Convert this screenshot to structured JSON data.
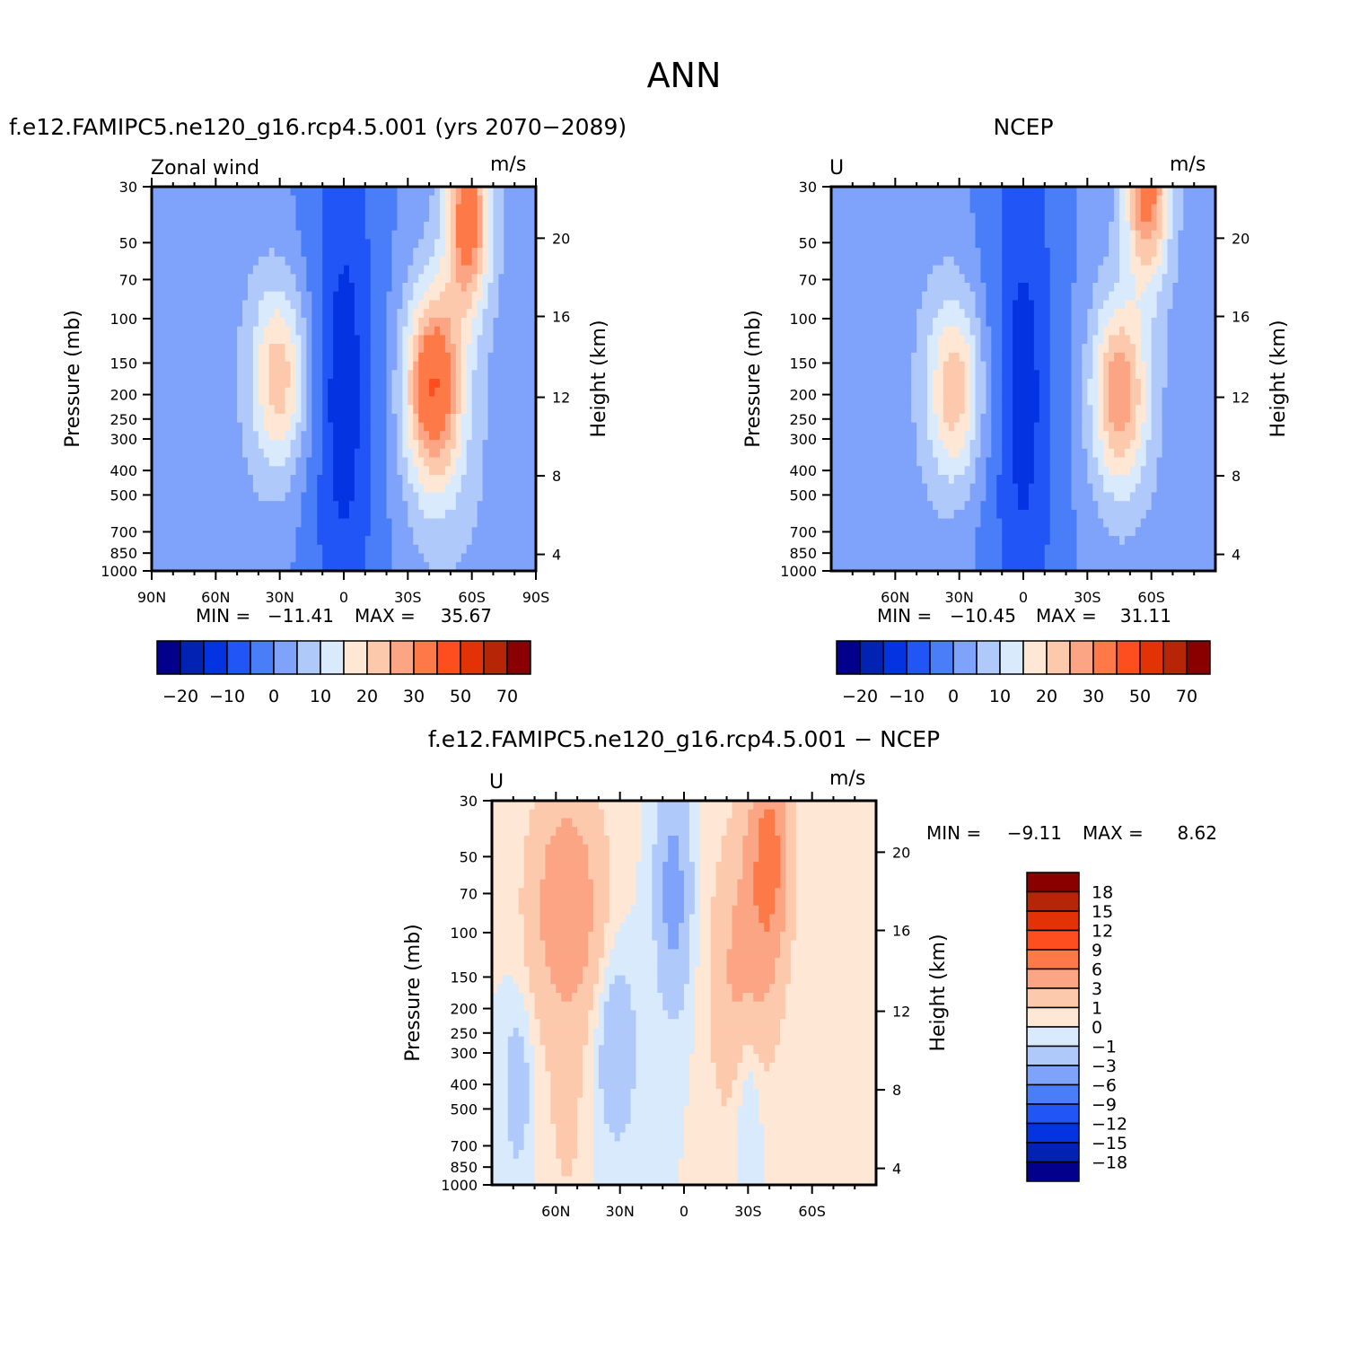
{
  "figure": {
    "title": "ANN",
    "colors": {
      "blues": [
        "#03008c",
        "#0222b4",
        "#0434e1",
        "#2155f5",
        "#4a7ef9",
        "#7fa2fa",
        "#b0c9fb",
        "#d9eafd"
      ],
      "reds": [
        "#fee8d5",
        "#fdc9ad",
        "#fca584",
        "#fd7a48",
        "#fe4d1e",
        "#e43207",
        "#b72507",
        "#8a0000"
      ]
    }
  },
  "chart_data": [
    {
      "type": "contour",
      "title": "f.e12.FAMIPC5.ne120_g16.rcp4.5.001 (yrs 2070−2089)",
      "left_label": "Zonal wind",
      "units": "m/s",
      "ylabel": "Pressure (mb)",
      "ylabel_right": "Height (km)",
      "x_ticks": [
        "90N",
        "60N",
        "30N",
        "0",
        "30S",
        "60S",
        "90S"
      ],
      "x_values": [
        90,
        60,
        30,
        0,
        -30,
        -60,
        -90
      ],
      "y_ticks": [
        "30",
        "50",
        "70",
        "100",
        "150",
        "200",
        "250",
        "300",
        "400",
        "500",
        "700",
        "850",
        "1000"
      ],
      "y_values": [
        30,
        50,
        70,
        100,
        150,
        200,
        250,
        300,
        400,
        500,
        700,
        850,
        1000
      ],
      "height_ticks": [
        "20",
        "16",
        "12",
        "8",
        "4"
      ],
      "stats": {
        "min_label": "MIN =",
        "min": "−11.41",
        "max_label": "MAX =",
        "max": "35.67"
      },
      "colorbar_labels": [
        "−20",
        "−10",
        "0",
        "10",
        "20",
        "30",
        "50",
        "70"
      ],
      "jets": [
        {
          "lat": 30,
          "p": 170,
          "u": 22
        },
        {
          "lat": -42,
          "p": 180,
          "u": 35.67
        },
        {
          "lat": -58,
          "p": 40,
          "u": 33
        }
      ]
    },
    {
      "type": "contour",
      "title": "NCEP",
      "left_label": "U",
      "units": "m/s",
      "ylabel": "Pressure (mb)",
      "ylabel_right": "Height (km)",
      "x_ticks": [
        "60N",
        "30N",
        "0",
        "30S",
        "60S"
      ],
      "x_values": [
        60,
        30,
        0,
        -30,
        -60
      ],
      "y_ticks": [
        "30",
        "50",
        "70",
        "100",
        "150",
        "200",
        "250",
        "300",
        "400",
        "500",
        "700",
        "850",
        "1000"
      ],
      "y_values": [
        30,
        50,
        70,
        100,
        150,
        200,
        250,
        300,
        400,
        500,
        700,
        850,
        1000
      ],
      "height_ticks": [
        "20",
        "16",
        "12",
        "8",
        "4"
      ],
      "stats": {
        "min_label": "MIN =",
        "min": "−10.45",
        "max_label": "MAX =",
        "max": "31.11"
      },
      "colorbar_labels": [
        "−20",
        "−10",
        "0",
        "10",
        "20",
        "30",
        "50",
        "70"
      ],
      "jets": [
        {
          "lat": 32,
          "p": 190,
          "u": 22
        },
        {
          "lat": -45,
          "p": 200,
          "u": 27
        },
        {
          "lat": -58,
          "p": 30,
          "u": 31
        }
      ]
    },
    {
      "type": "contour",
      "title": "f.e12.FAMIPC5.ne120_g16.rcp4.5.001 − NCEP",
      "left_label": "U",
      "units": "m/s",
      "ylabel": "Pressure (mb)",
      "ylabel_right": "Height (km)",
      "x_ticks": [
        "60N",
        "30N",
        "0",
        "30S",
        "60S"
      ],
      "x_values": [
        60,
        30,
        0,
        -30,
        -60
      ],
      "y_ticks": [
        "30",
        "50",
        "70",
        "100",
        "150",
        "200",
        "250",
        "300",
        "400",
        "500",
        "700",
        "850",
        "1000"
      ],
      "y_values": [
        30,
        50,
        70,
        100,
        150,
        200,
        250,
        300,
        400,
        500,
        700,
        850,
        1000
      ],
      "height_ticks": [
        "20",
        "16",
        "12",
        "8",
        "4"
      ],
      "stats": {
        "min_label": "MIN =",
        "min": "−9.11",
        "max_label": "MAX =",
        "max": "8.62"
      },
      "colorbar_labels": [
        "18",
        "15",
        "12",
        "9",
        "6",
        "3",
        "1",
        "0",
        "−1",
        "−3",
        "−6",
        "−9",
        "−12",
        "−15",
        "−18"
      ]
    }
  ]
}
